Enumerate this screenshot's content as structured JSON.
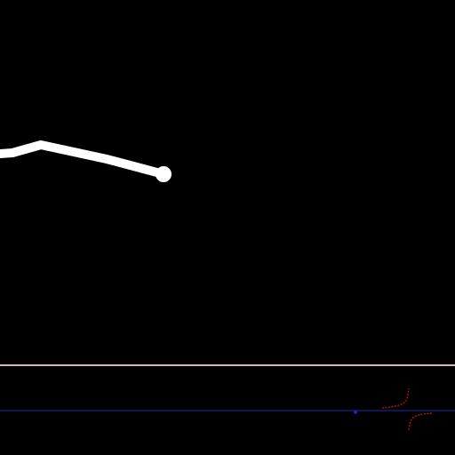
{
  "canvas": {
    "background": "#000000",
    "stroke_color": "#ffffff",
    "stroke_name": "white-stroke"
  },
  "divider": {
    "color": "#d9b7b7"
  },
  "timeline": {
    "background": "#000000",
    "baseline_color": "#1f1f8f",
    "trace_color": "#c81414",
    "marker_color": "#2020ff"
  }
}
